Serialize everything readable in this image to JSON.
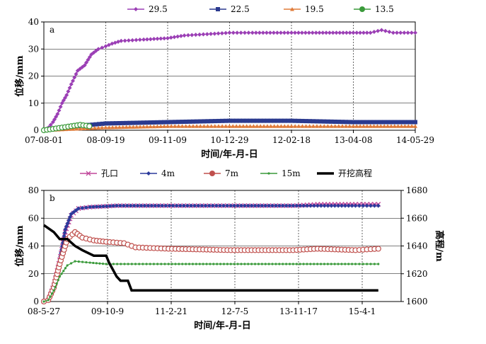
{
  "chart_data": [
    {
      "id": "a",
      "type": "line",
      "panel_label": "a",
      "xlabel": "时间/年-月-日",
      "ylabel": "位移/mm",
      "ylim": [
        0,
        40
      ],
      "yticks": [
        0,
        10,
        20,
        30,
        40
      ],
      "xlim": [
        "07-08-01",
        "14-05-29"
      ],
      "xtick_labels": [
        "07-08-01",
        "08-09-19",
        "09-11-09",
        "10-12-29",
        "12-02-18",
        "13-04-08",
        "14-05-29"
      ],
      "grid": true,
      "legend_position": "top",
      "series": [
        {
          "name": "29.5",
          "color": "#9b3fb5",
          "marker": "diamond",
          "points": [
            [
              "07-08-01",
              0
            ],
            [
              "07-09-01",
              1
            ],
            [
              "07-10-01",
              3
            ],
            [
              "07-11-01",
              6
            ],
            [
              "07-12-01",
              10
            ],
            [
              "08-01-01",
              13
            ],
            [
              "08-02-01",
              17
            ],
            [
              "08-03-15",
              22
            ],
            [
              "08-05-01",
              24
            ],
            [
              "08-06-15",
              28
            ],
            [
              "08-08-01",
              30
            ],
            [
              "08-09-19",
              31
            ],
            [
              "08-11-01",
              32
            ],
            [
              "09-01-01",
              33
            ],
            [
              "09-06-01",
              33.5
            ],
            [
              "09-11-09",
              34
            ],
            [
              "10-03-01",
              35
            ],
            [
              "10-08-01",
              35.5
            ],
            [
              "10-12-29",
              36
            ],
            [
              "11-06-01",
              36
            ],
            [
              "12-02-18",
              36
            ],
            [
              "12-08-01",
              36
            ],
            [
              "13-04-08",
              36
            ],
            [
              "13-08-01",
              36
            ],
            [
              "13-10-15",
              37
            ],
            [
              "14-01-01",
              36
            ],
            [
              "14-05-29",
              36
            ]
          ]
        },
        {
          "name": "22.5",
          "color": "#2b3a8f",
          "marker": "square",
          "points": [
            [
              "07-08-01",
              0
            ],
            [
              "08-03-01",
              1.5
            ],
            [
              "08-09-19",
              2.5
            ],
            [
              "09-11-09",
              3
            ],
            [
              "10-12-29",
              3.5
            ],
            [
              "12-02-18",
              3.5
            ],
            [
              "13-04-08",
              3
            ],
            [
              "14-05-29",
              3
            ]
          ]
        },
        {
          "name": "19.5",
          "color": "#e07b39",
          "marker": "triangle",
          "points": [
            [
              "07-08-01",
              0
            ],
            [
              "08-09-19",
              1
            ],
            [
              "09-11-09",
              1.5
            ],
            [
              "10-12-29",
              1.5
            ],
            [
              "12-02-18",
              1.5
            ],
            [
              "13-04-08",
              1.5
            ],
            [
              "14-05-29",
              1.5
            ]
          ]
        },
        {
          "name": "13.5",
          "color": "#3a9a3a",
          "marker": "circle",
          "points": [
            [
              "07-08-01",
              0
            ],
            [
              "07-10-01",
              0.5
            ],
            [
              "07-12-01",
              1
            ],
            [
              "08-02-01",
              1.5
            ],
            [
              "08-04-01",
              2
            ],
            [
              "08-06-01",
              1.5
            ]
          ]
        }
      ]
    },
    {
      "id": "b",
      "type": "line",
      "panel_label": "b",
      "xlabel": "时间/年-月-日",
      "ylabel": "位移/mm",
      "y2label": "高程/m",
      "ylim": [
        0,
        80
      ],
      "yticks": [
        0,
        20,
        40,
        60,
        80
      ],
      "y2lim": [
        1600,
        1680
      ],
      "y2ticks": [
        1600,
        1620,
        1640,
        1660,
        1680
      ],
      "xlim": [
        "08-05-27",
        "16-04-01"
      ],
      "xtick_labels": [
        "08-5-27",
        "09-10-9",
        "11-2-21",
        "12-7-5",
        "13-11-17",
        "15-4-1"
      ],
      "grid": true,
      "legend_position": "top",
      "series": [
        {
          "name": "孔口",
          "color": "#c0479a",
          "marker": "x",
          "axis": "left",
          "points": [
            [
              "08-05-27",
              0
            ],
            [
              "08-07-01",
              1
            ],
            [
              "08-08-15",
              12
            ],
            [
              "08-10-01",
              30
            ],
            [
              "08-11-15",
              50
            ],
            [
              "09-01-01",
              62
            ],
            [
              "09-03-01",
              67
            ],
            [
              "09-06-01",
              68
            ],
            [
              "10-01-01",
              69
            ],
            [
              "11-01-01",
              69
            ],
            [
              "12-07-05",
              69
            ],
            [
              "13-11-17",
              69
            ],
            [
              "14-06-01",
              70
            ],
            [
              "15-04-01",
              70
            ],
            [
              "15-10-01",
              70
            ]
          ]
        },
        {
          "name": "4m",
          "color": "#2b3a9b",
          "marker": "diamond",
          "axis": "left",
          "points": [
            [
              "08-05-27",
              0
            ],
            [
              "08-07-01",
              1
            ],
            [
              "08-08-15",
              12
            ],
            [
              "08-10-01",
              30
            ],
            [
              "08-11-15",
              52
            ],
            [
              "09-01-01",
              63
            ],
            [
              "09-03-01",
              67
            ],
            [
              "09-06-01",
              68
            ],
            [
              "10-01-01",
              69
            ],
            [
              "11-01-01",
              69
            ],
            [
              "12-07-05",
              69
            ],
            [
              "13-11-17",
              69
            ],
            [
              "14-06-01",
              69
            ],
            [
              "15-04-01",
              69
            ],
            [
              "15-10-01",
              69
            ]
          ]
        },
        {
          "name": "7m",
          "color": "#c0504d",
          "marker": "circle",
          "axis": "left",
          "points": [
            [
              "08-05-27",
              0
            ],
            [
              "08-07-01",
              1
            ],
            [
              "08-08-15",
              10
            ],
            [
              "08-10-01",
              27
            ],
            [
              "08-12-01",
              45
            ],
            [
              "09-02-01",
              50
            ],
            [
              "09-04-01",
              46
            ],
            [
              "09-07-01",
              44
            ],
            [
              "09-10-09",
              43
            ],
            [
              "10-03-01",
              42
            ],
            [
              "10-06-01",
              39
            ],
            [
              "11-02-21",
              38
            ],
            [
              "12-07-05",
              37
            ],
            [
              "13-11-17",
              37
            ],
            [
              "14-06-01",
              38
            ],
            [
              "15-04-01",
              37
            ],
            [
              "15-10-01",
              38
            ]
          ]
        },
        {
          "name": "15m",
          "color": "#3a9a3a",
          "marker": "dot",
          "axis": "left",
          "points": [
            [
              "08-05-27",
              0
            ],
            [
              "08-07-01",
              1
            ],
            [
              "08-08-15",
              8
            ],
            [
              "08-10-01",
              18
            ],
            [
              "08-12-01",
              26
            ],
            [
              "09-02-01",
              29
            ],
            [
              "09-06-01",
              28
            ],
            [
              "09-10-09",
              27
            ],
            [
              "10-06-01",
              27
            ],
            [
              "11-02-21",
              27
            ],
            [
              "12-07-05",
              27
            ],
            [
              "13-11-17",
              27
            ],
            [
              "15-04-01",
              27
            ],
            [
              "15-10-01",
              27
            ]
          ]
        },
        {
          "name": "开挖高程",
          "color": "#000000",
          "marker": "none",
          "axis": "right",
          "points": [
            [
              "08-05-27",
              1655
            ],
            [
              "08-08-15",
              1650
            ],
            [
              "08-10-01",
              1645
            ],
            [
              "08-12-01",
              1645
            ],
            [
              "09-02-01",
              1640
            ],
            [
              "09-04-01",
              1637
            ],
            [
              "09-07-01",
              1633
            ],
            [
              "09-10-09",
              1633
            ],
            [
              "09-11-01",
              1628
            ],
            [
              "10-01-01",
              1618
            ],
            [
              "10-02-01",
              1615
            ],
            [
              "10-04-01",
              1615
            ],
            [
              "10-05-01",
              1608
            ],
            [
              "15-10-01",
              1608
            ]
          ]
        }
      ]
    }
  ]
}
